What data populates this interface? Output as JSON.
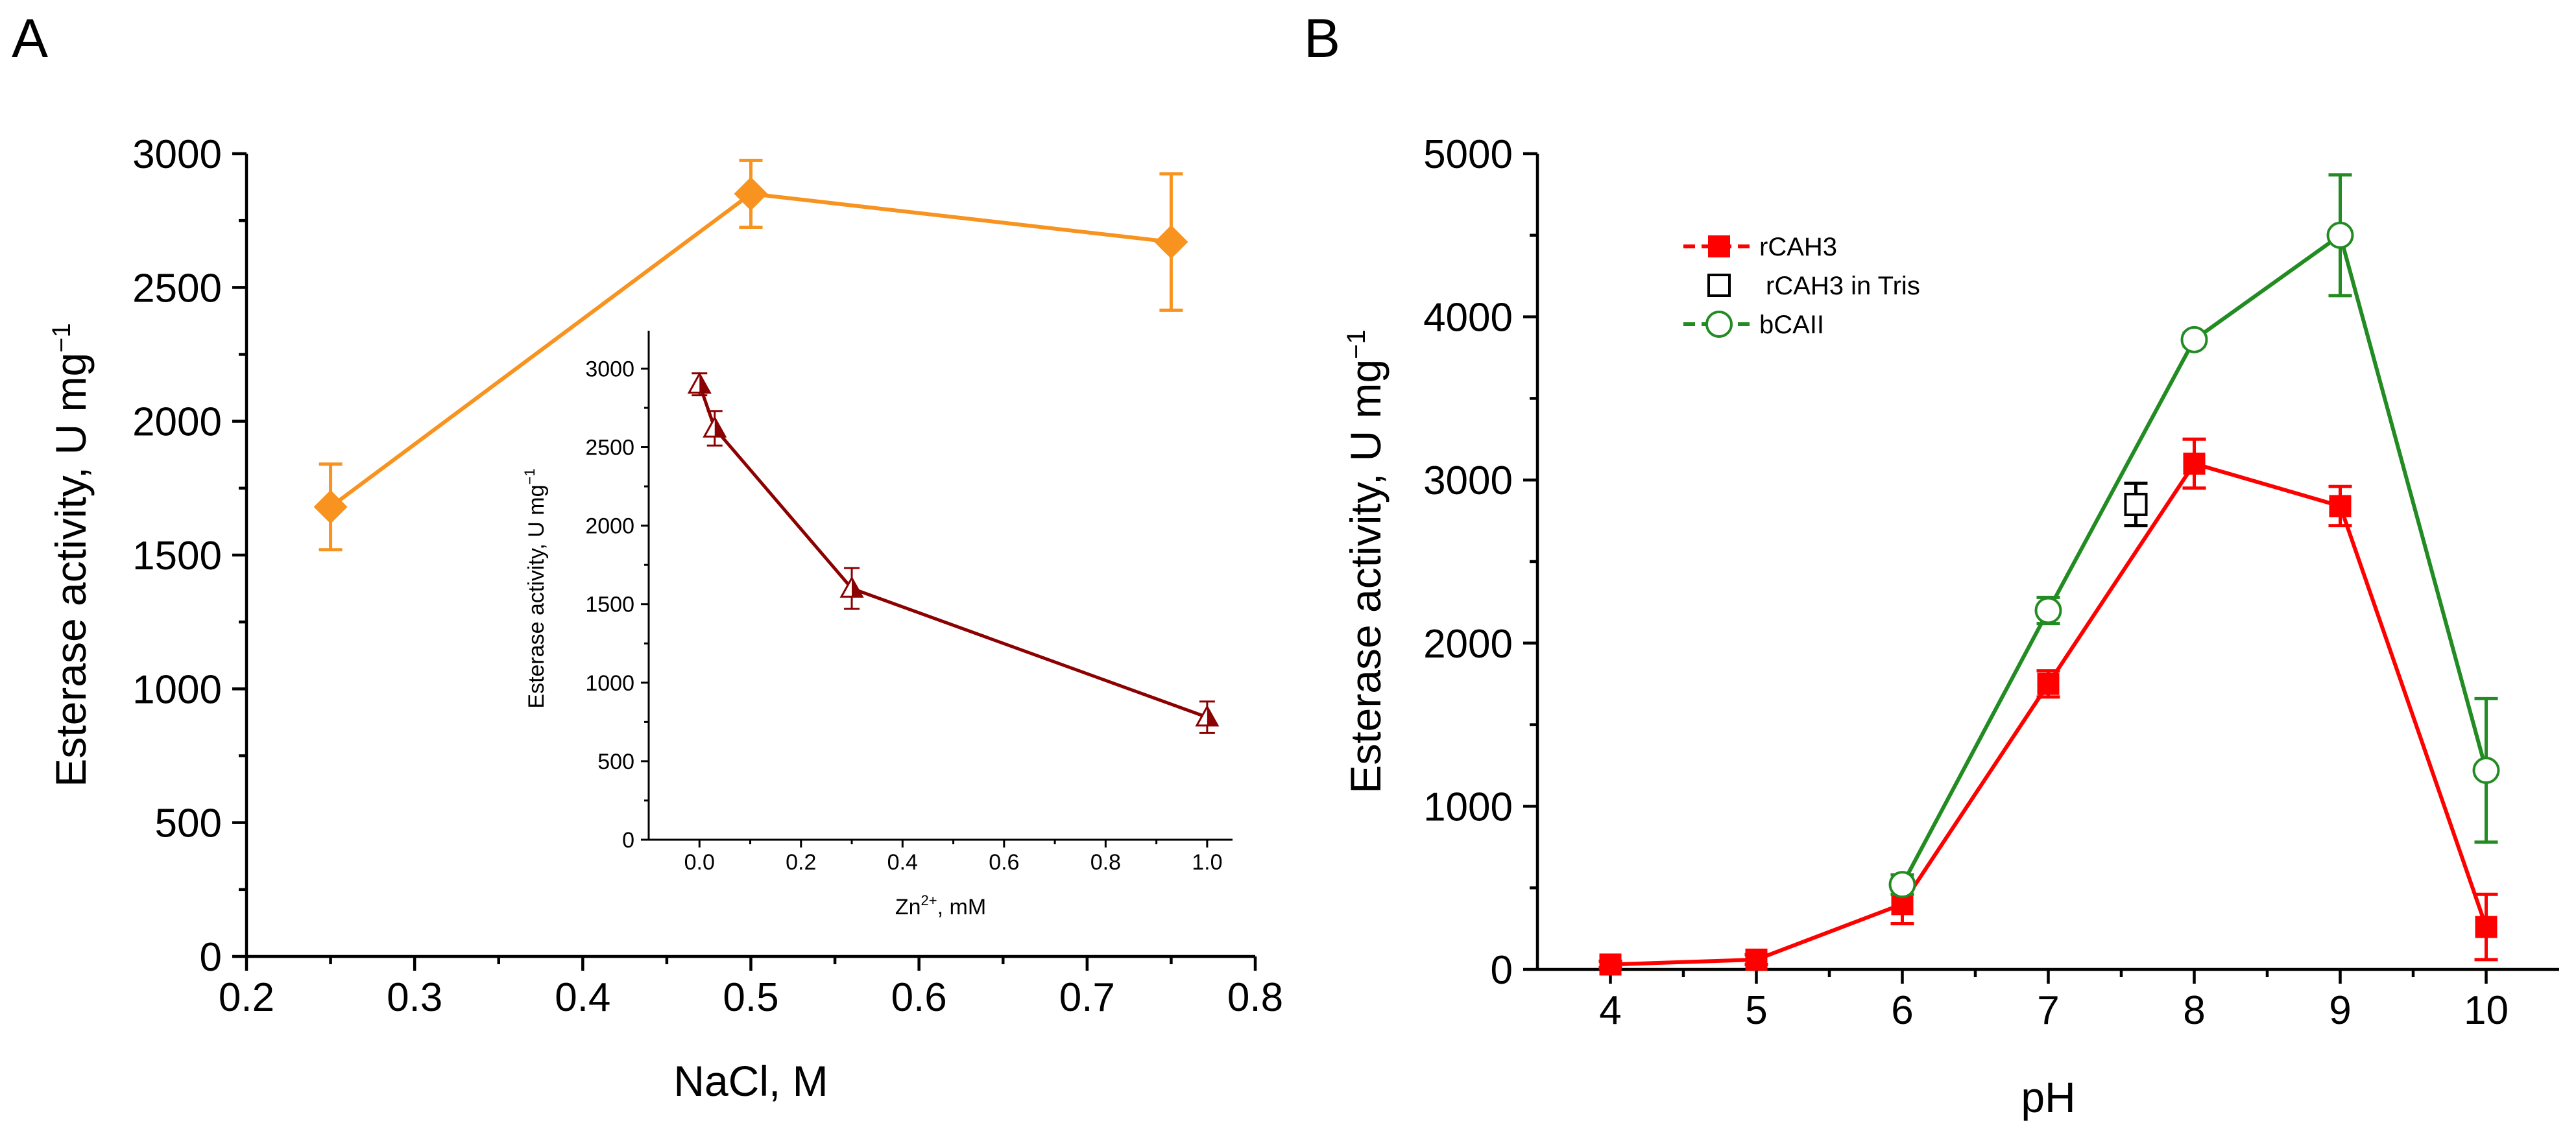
{
  "panels": {
    "a": {
      "letter": "A"
    },
    "b": {
      "letter": "B"
    }
  },
  "chart_data": [
    {
      "id": "A-main",
      "type": "line",
      "xlabel": "NaCl, M",
      "ylabel": "Esterase activity, U mg",
      "ylabel_sup": "−1",
      "xlim": [
        0.2,
        0.8
      ],
      "ylim": [
        0,
        3000
      ],
      "xticks": [
        0.2,
        0.3,
        0.4,
        0.5,
        0.6,
        0.7,
        0.8
      ],
      "xtick_labels": [
        "0.2",
        "0.3",
        "0.4",
        "0.5",
        "0.6",
        "0.7",
        "0.8"
      ],
      "yticks": [
        0,
        500,
        1000,
        1500,
        2000,
        2500,
        3000
      ],
      "ytick_labels": [
        "0",
        "500",
        "1000",
        "1500",
        "2000",
        "2500",
        "3000"
      ],
      "series": [
        {
          "name": "NaCl",
          "color": "#F7931E",
          "marker": "diamond-filled",
          "x": [
            0.25,
            0.5,
            0.75
          ],
          "y": [
            1680,
            2850,
            2670
          ],
          "err": [
            160,
            125,
            255
          ]
        }
      ]
    },
    {
      "id": "A-inset",
      "type": "line",
      "xlabel": "Zn",
      "xlabel_sup": "2+",
      "xlabel_suffix": ", mM",
      "ylabel": "Esterase activity, U mg",
      "ylabel_sup": "−1",
      "xlim": [
        -0.1,
        1.05
      ],
      "ylim": [
        0,
        3200
      ],
      "xticks": [
        0.0,
        0.2,
        0.4,
        0.6,
        0.8,
        1.0
      ],
      "xtick_labels": [
        "0.0",
        "0.2",
        "0.4",
        "0.6",
        "0.8",
        "1.0"
      ],
      "yticks": [
        0,
        500,
        1000,
        1500,
        2000,
        2500,
        3000
      ],
      "ytick_labels": [
        "0",
        "500",
        "1000",
        "1500",
        "2000",
        "2500",
        "3000"
      ],
      "series": [
        {
          "name": "Zn",
          "color": "#8B0000",
          "marker": "triangle-half",
          "x": [
            0.0,
            0.03,
            0.3,
            1.0
          ],
          "y": [
            2900,
            2620,
            1600,
            780
          ],
          "err": [
            70,
            110,
            130,
            100
          ]
        }
      ]
    },
    {
      "id": "B",
      "type": "line",
      "xlabel": "pH",
      "ylabel": "Esterase activity, U mg",
      "ylabel_sup": "−1",
      "xlim": [
        3.5,
        10.5
      ],
      "ylim": [
        0,
        5000
      ],
      "xticks": [
        4,
        5,
        6,
        7,
        8,
        9,
        10
      ],
      "xtick_labels": [
        "4",
        "5",
        "6",
        "7",
        "8",
        "9",
        "10"
      ],
      "yticks": [
        0,
        1000,
        2000,
        3000,
        4000,
        5000
      ],
      "ytick_labels": [
        "0",
        "1000",
        "2000",
        "3000",
        "4000",
        "5000"
      ],
      "legend_position": "top-left",
      "series": [
        {
          "name": "rCAH3",
          "color": "#FF0000",
          "marker": "square-filled",
          "line": true,
          "x": [
            4,
            5,
            6,
            7,
            8,
            9,
            10
          ],
          "y": [
            30,
            60,
            400,
            1750,
            3100,
            2840,
            260
          ],
          "err": [
            20,
            30,
            120,
            80,
            150,
            120,
            200
          ]
        },
        {
          "name": "rCAH3 in Tris",
          "color": "#000000",
          "marker": "square-open",
          "line": false,
          "x": [
            7.6
          ],
          "y": [
            2850
          ],
          "err": [
            130
          ]
        },
        {
          "name": "bCAII",
          "color": "#228B22",
          "marker": "circle-open",
          "line": true,
          "x": [
            6,
            7,
            8,
            9,
            10
          ],
          "y": [
            520,
            2200,
            3860,
            4500,
            1220
          ],
          "err": [
            60,
            80,
            40,
            370,
            440
          ]
        }
      ]
    }
  ]
}
